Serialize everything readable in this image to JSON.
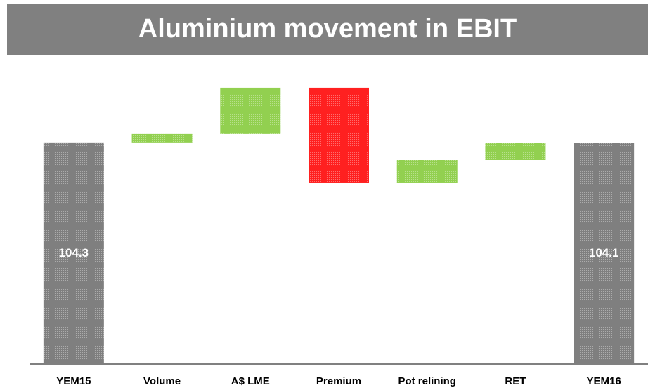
{
  "chart_data": {
    "type": "waterfall",
    "title": "Aluminium movement in EBIT",
    "categories": [
      "YEM15",
      "Volume",
      "A$ LME",
      "Premium",
      "Pot relining",
      "RET",
      "YEM16"
    ],
    "values": [
      104.3,
      4.3,
      21.5,
      -44.7,
      10.9,
      7.8,
      104.1
    ],
    "is_total": [
      true,
      false,
      false,
      false,
      false,
      false,
      true
    ],
    "total_color": "#7f7f7f",
    "increase_color": "#92d050",
    "decrease_color": "#ff2020",
    "ylim": [
      0,
      140
    ]
  }
}
